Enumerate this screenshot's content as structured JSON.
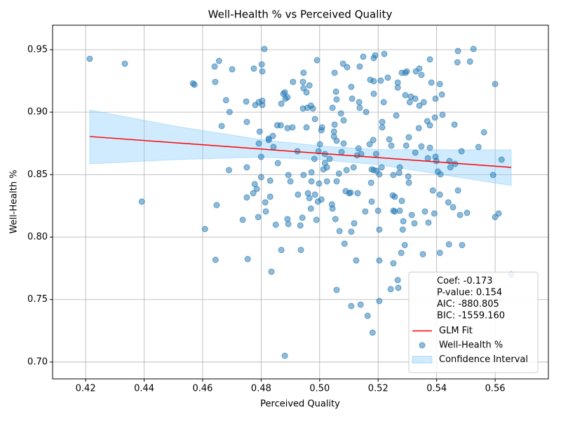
{
  "chart_data": {
    "type": "scatter",
    "title": "Well-Health % vs Perceived Quality",
    "xlabel": "Perceived Quality",
    "ylabel": "Well-Health %",
    "xlim": [
      0.4087,
      0.5782
    ],
    "ylim": [
      0.6865,
      0.9696
    ],
    "xticks": [
      0.42,
      0.44,
      0.46,
      0.48,
      {
        "value": 0.5,
        "label": "0.50"
      },
      0.52,
      0.54,
      0.56
    ],
    "yticks": [
      {
        "value": 0.7,
        "label": "0.70"
      },
      0.75,
      {
        "value": 0.8,
        "label": "0.80"
      },
      0.85,
      {
        "value": 0.9,
        "label": "0.90"
      },
      0.95
    ],
    "grid": true,
    "legend": "lower right",
    "annotations": [
      "Coef: -0.173",
      "P-value: 0.154",
      "AIC: -880.805",
      "BIC: -1559.160"
    ],
    "series": [
      {
        "name": "Well-Health %",
        "color": "#1f77b4",
        "x": [
          0.4214,
          0.4334,
          0.4392,
          0.4608,
          0.4567,
          0.4572,
          0.4641,
          0.4656,
          0.4643,
          0.4665,
          0.4648,
          0.4644,
          0.468,
          0.4692,
          0.4701,
          0.469,
          0.4737,
          0.4751,
          0.4751,
          0.4751,
          0.4749,
          0.4754,
          0.4775,
          0.4773,
          0.4778,
          0.4785,
          0.478,
          0.479,
          0.4795,
          0.4792,
          0.4792,
          0.48,
          0.4802,
          0.4804,
          0.4804,
          0.4804,
          0.48,
          0.4811,
          0.4814,
          0.4816,
          0.4826,
          0.4826,
          0.4831,
          0.4831,
          0.4835,
          0.484,
          0.4842,
          0.485,
          0.4857,
          0.4855,
          0.4867,
          0.4869,
          0.4869,
          0.4876,
          0.4881,
          0.4881,
          0.489,
          0.4883,
          0.489,
          0.489,
          0.4893,
          0.4893,
          0.49,
          0.4907,
          0.4909,
          0.4924,
          0.4926,
          0.4934,
          0.4936,
          0.4941,
          0.4943,
          0.4943,
          0.4945,
          0.4945,
          0.4945,
          0.4955,
          0.4958,
          0.4955,
          0.496,
          0.4965,
          0.4965,
          0.497,
          0.4972,
          0.4972,
          0.497,
          0.4977,
          0.4982,
          0.4984,
          0.4984,
          0.4989,
          0.4991,
          0.4994,
          0.4996,
          0.4998,
          0.5001,
          0.5006,
          0.5006,
          0.5008,
          0.5013,
          0.5018,
          0.5018,
          0.5025,
          0.5025,
          0.5034,
          0.5042,
          0.5044,
          0.5044,
          0.5051,
          0.5051,
          0.5054,
          0.5049,
          0.5049,
          0.5056,
          0.5058,
          0.5058,
          0.5058,
          0.5058,
          0.5066,
          0.5068,
          0.5073,
          0.5075,
          0.508,
          0.5082,
          0.5082,
          0.5085,
          0.5089,
          0.5092,
          0.5094,
          0.5101,
          0.5106,
          0.5108,
          0.5108,
          0.5108,
          0.5111,
          0.5116,
          0.5118,
          0.5125,
          0.5128,
          0.513,
          0.5133,
          0.5135,
          0.5137,
          0.5137,
          0.514,
          0.5142,
          0.5149,
          0.5156,
          0.5159,
          0.5164,
          0.5171,
          0.5173,
          0.5176,
          0.5178,
          0.5178,
          0.5181,
          0.5183,
          0.5185,
          0.5185,
          0.5185,
          0.5185,
          0.519,
          0.5193,
          0.5195,
          0.52,
          0.5204,
          0.5204,
          0.5204,
          0.5204,
          0.5209,
          0.5212,
          0.5214,
          0.5214,
          0.5219,
          0.5221,
          0.5233,
          0.5238,
          0.5243,
          0.5245,
          0.525,
          0.5252,
          0.5252,
          0.5252,
          0.5257,
          0.5257,
          0.5262,
          0.5267,
          0.5267,
          0.5267,
          0.5269,
          0.5272,
          0.5274,
          0.5274,
          0.5279,
          0.5281,
          0.5281,
          0.5284,
          0.5286,
          0.5291,
          0.5293,
          0.5293,
          0.5296,
          0.5298,
          0.5303,
          0.5305,
          0.5305,
          0.5308,
          0.5312,
          0.5315,
          0.5324,
          0.5327,
          0.5327,
          0.5329,
          0.5339,
          0.5341,
          0.5341,
          0.5348,
          0.5348,
          0.5353,
          0.5356,
          0.536,
          0.5368,
          0.537,
          0.5372,
          0.5377,
          0.5377,
          0.5377,
          0.5382,
          0.5387,
          0.5392,
          0.5394,
          0.5396,
          0.5396,
          0.5399,
          0.5404,
          0.5411,
          0.5411,
          0.5411,
          0.5413,
          0.5418,
          0.542,
          0.544,
          0.5442,
          0.5444,
          0.5447,
          0.5456,
          0.5461,
          0.5463,
          0.5471,
          0.5473,
          0.5473,
          0.548,
          0.5485,
          0.5487,
          0.5504,
          0.5514,
          0.5526,
          0.5543,
          0.5562,
          0.5593,
          0.56,
          0.56,
          0.5612,
          0.5622,
          0.5655
        ],
        "values": [
          0.9427,
          0.9388,
          0.8284,
          0.8065,
          0.923,
          0.922,
          0.9365,
          0.941,
          0.9242,
          0.8889,
          0.8256,
          0.7818,
          0.9096,
          0.9001,
          0.9343,
          0.8536,
          0.8138,
          0.8317,
          0.8558,
          0.8922,
          0.9085,
          0.7824,
          0.9349,
          0.8351,
          0.8424,
          0.8385,
          0.9057,
          0.816,
          0.8844,
          0.8749,
          0.908,
          0.848,
          0.9382,
          0.9326,
          0.9057,
          0.9091,
          0.8642,
          0.9506,
          0.8278,
          0.8205,
          0.8777,
          0.8788,
          0.8452,
          0.8323,
          0.7723,
          0.881,
          0.8721,
          0.8099,
          0.8592,
          0.8895,
          0.8895,
          0.7897,
          0.9068,
          0.9147,
          0.9158,
          0.705,
          0.9119,
          0.9108,
          0.8872,
          0.8144,
          0.8104,
          0.8497,
          0.8446,
          0.8878,
          0.9242,
          0.8687,
          0.834,
          0.8093,
          0.7897,
          0.8155,
          0.9029,
          0.9242,
          0.9315,
          0.9192,
          0.8497,
          0.9158,
          0.9035,
          0.8878,
          0.8351,
          0.8312,
          0.9214,
          0.9052,
          0.8519,
          0.8446,
          0.8228,
          0.9029,
          0.8626,
          0.8945,
          0.834,
          0.8138,
          0.9416,
          0.8284,
          0.8687,
          0.8429,
          0.8743,
          0.8855,
          0.8301,
          0.8878,
          0.8542,
          0.8592,
          0.8665,
          0.8558,
          0.8446,
          0.8626,
          0.8262,
          0.9035,
          0.8228,
          0.9315,
          0.89,
          0.8144,
          0.8844,
          0.8805,
          0.9164,
          0.8446,
          0.8771,
          0.9102,
          0.7577,
          0.8508,
          0.8048,
          0.899,
          0.8681,
          0.9388,
          0.8934,
          0.8749,
          0.7947,
          0.8368,
          0.8536,
          0.936,
          0.8351,
          0.8356,
          0.8043,
          0.7448,
          0.9203,
          0.9108,
          0.8558,
          0.811,
          0.7813,
          0.8654,
          0.8351,
          0.871,
          0.908,
          0.9365,
          0.9035,
          0.7459,
          0.8665,
          0.9444,
          0.8205,
          0.9001,
          0.737,
          0.8743,
          0.9259,
          0.8435,
          0.8284,
          0.8542,
          0.7235,
          0.8777,
          0.9147,
          0.8536,
          0.9248,
          0.9433,
          0.9455,
          0.8665,
          0.853,
          0.8211,
          0.8502,
          0.806,
          0.7813,
          0.7488,
          0.9253,
          0.8558,
          0.8922,
          0.8878,
          0.908,
          0.9466,
          0.9276,
          0.8782,
          0.7583,
          0.8732,
          0.8334,
          0.8497,
          0.779,
          0.8211,
          0.8323,
          0.8205,
          0.8973,
          0.9237,
          0.9197,
          0.7656,
          0.7594,
          0.8514,
          0.8558,
          0.8211,
          0.7874,
          0.9315,
          0.829,
          0.806,
          0.8127,
          0.7936,
          0.9136,
          0.9315,
          0.8732,
          0.9326,
          0.8485,
          0.8435,
          0.8799,
          0.908,
          0.9124,
          0.8177,
          0.811,
          0.9108,
          0.8676,
          0.9326,
          0.8872,
          0.9349,
          0.9052,
          0.8726,
          0.9298,
          0.7863,
          0.908,
          0.8205,
          0.8928,
          0.8631,
          0.8116,
          0.9422,
          0.8715,
          0.8895,
          0.9237,
          0.8373,
          0.8189,
          0.8957,
          0.9108,
          0.8643,
          0.8609,
          0.8525,
          0.834,
          0.7874,
          0.9225,
          0.8502,
          0.9141,
          0.8979,
          0.8278,
          0.7942,
          0.8609,
          0.8558,
          0.8239,
          0.89,
          0.8586,
          0.9399,
          0.9489,
          0.8373,
          0.8177,
          0.8687,
          0.7936,
          0.8194,
          0.9405,
          0.9506,
          0.8721,
          0.8839,
          0.8497,
          0.9225,
          0.816,
          0.8189,
          0.862,
          0.7701
        ]
      }
    ],
    "fit": {
      "name": "GLM Fit",
      "color": "#ff0000",
      "x": [
        0.4214,
        0.5655
      ],
      "values": [
        0.8805,
        0.8558
      ]
    },
    "confidence": {
      "name": "Confidence Interval",
      "color": "#87cefa",
      "x": [
        0.4214,
        0.45,
        0.48,
        0.5,
        0.52,
        0.5655
      ],
      "upper": [
        0.9018,
        0.889,
        0.878,
        0.873,
        0.87,
        0.8698
      ],
      "lower": [
        0.8586,
        0.862,
        0.864,
        0.862,
        0.858,
        0.8413
      ]
    }
  }
}
